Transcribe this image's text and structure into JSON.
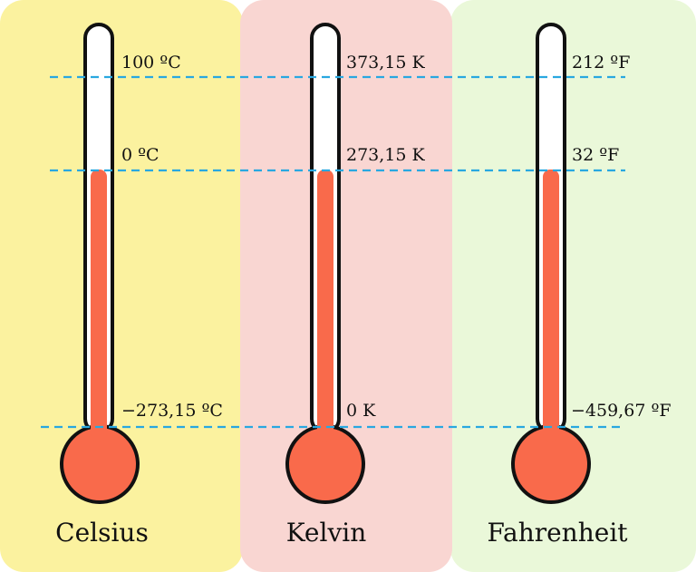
{
  "scales": [
    {
      "name": "Celsius",
      "panel_color": "#fbf29f",
      "labels": {
        "boiling": "100 ºC",
        "freezing": "0 ºC",
        "absolute_zero": "−273,15 ºC"
      }
    },
    {
      "name": "Kelvin",
      "panel_color": "#f9d6d2",
      "labels": {
        "boiling": "373,15 K",
        "freezing": "273,15 K",
        "absolute_zero": "0 K"
      }
    },
    {
      "name": "Fahrenheit",
      "panel_color": "#eaf8d9",
      "labels": {
        "boiling": "212 ºF",
        "freezing": "32 ºF",
        "absolute_zero": "−459,67 ºF"
      }
    }
  ],
  "colors": {
    "mercury": "#f96a4b",
    "tube": "#ffffff",
    "outline": "#111111",
    "reference_line": "#29a8e0"
  }
}
